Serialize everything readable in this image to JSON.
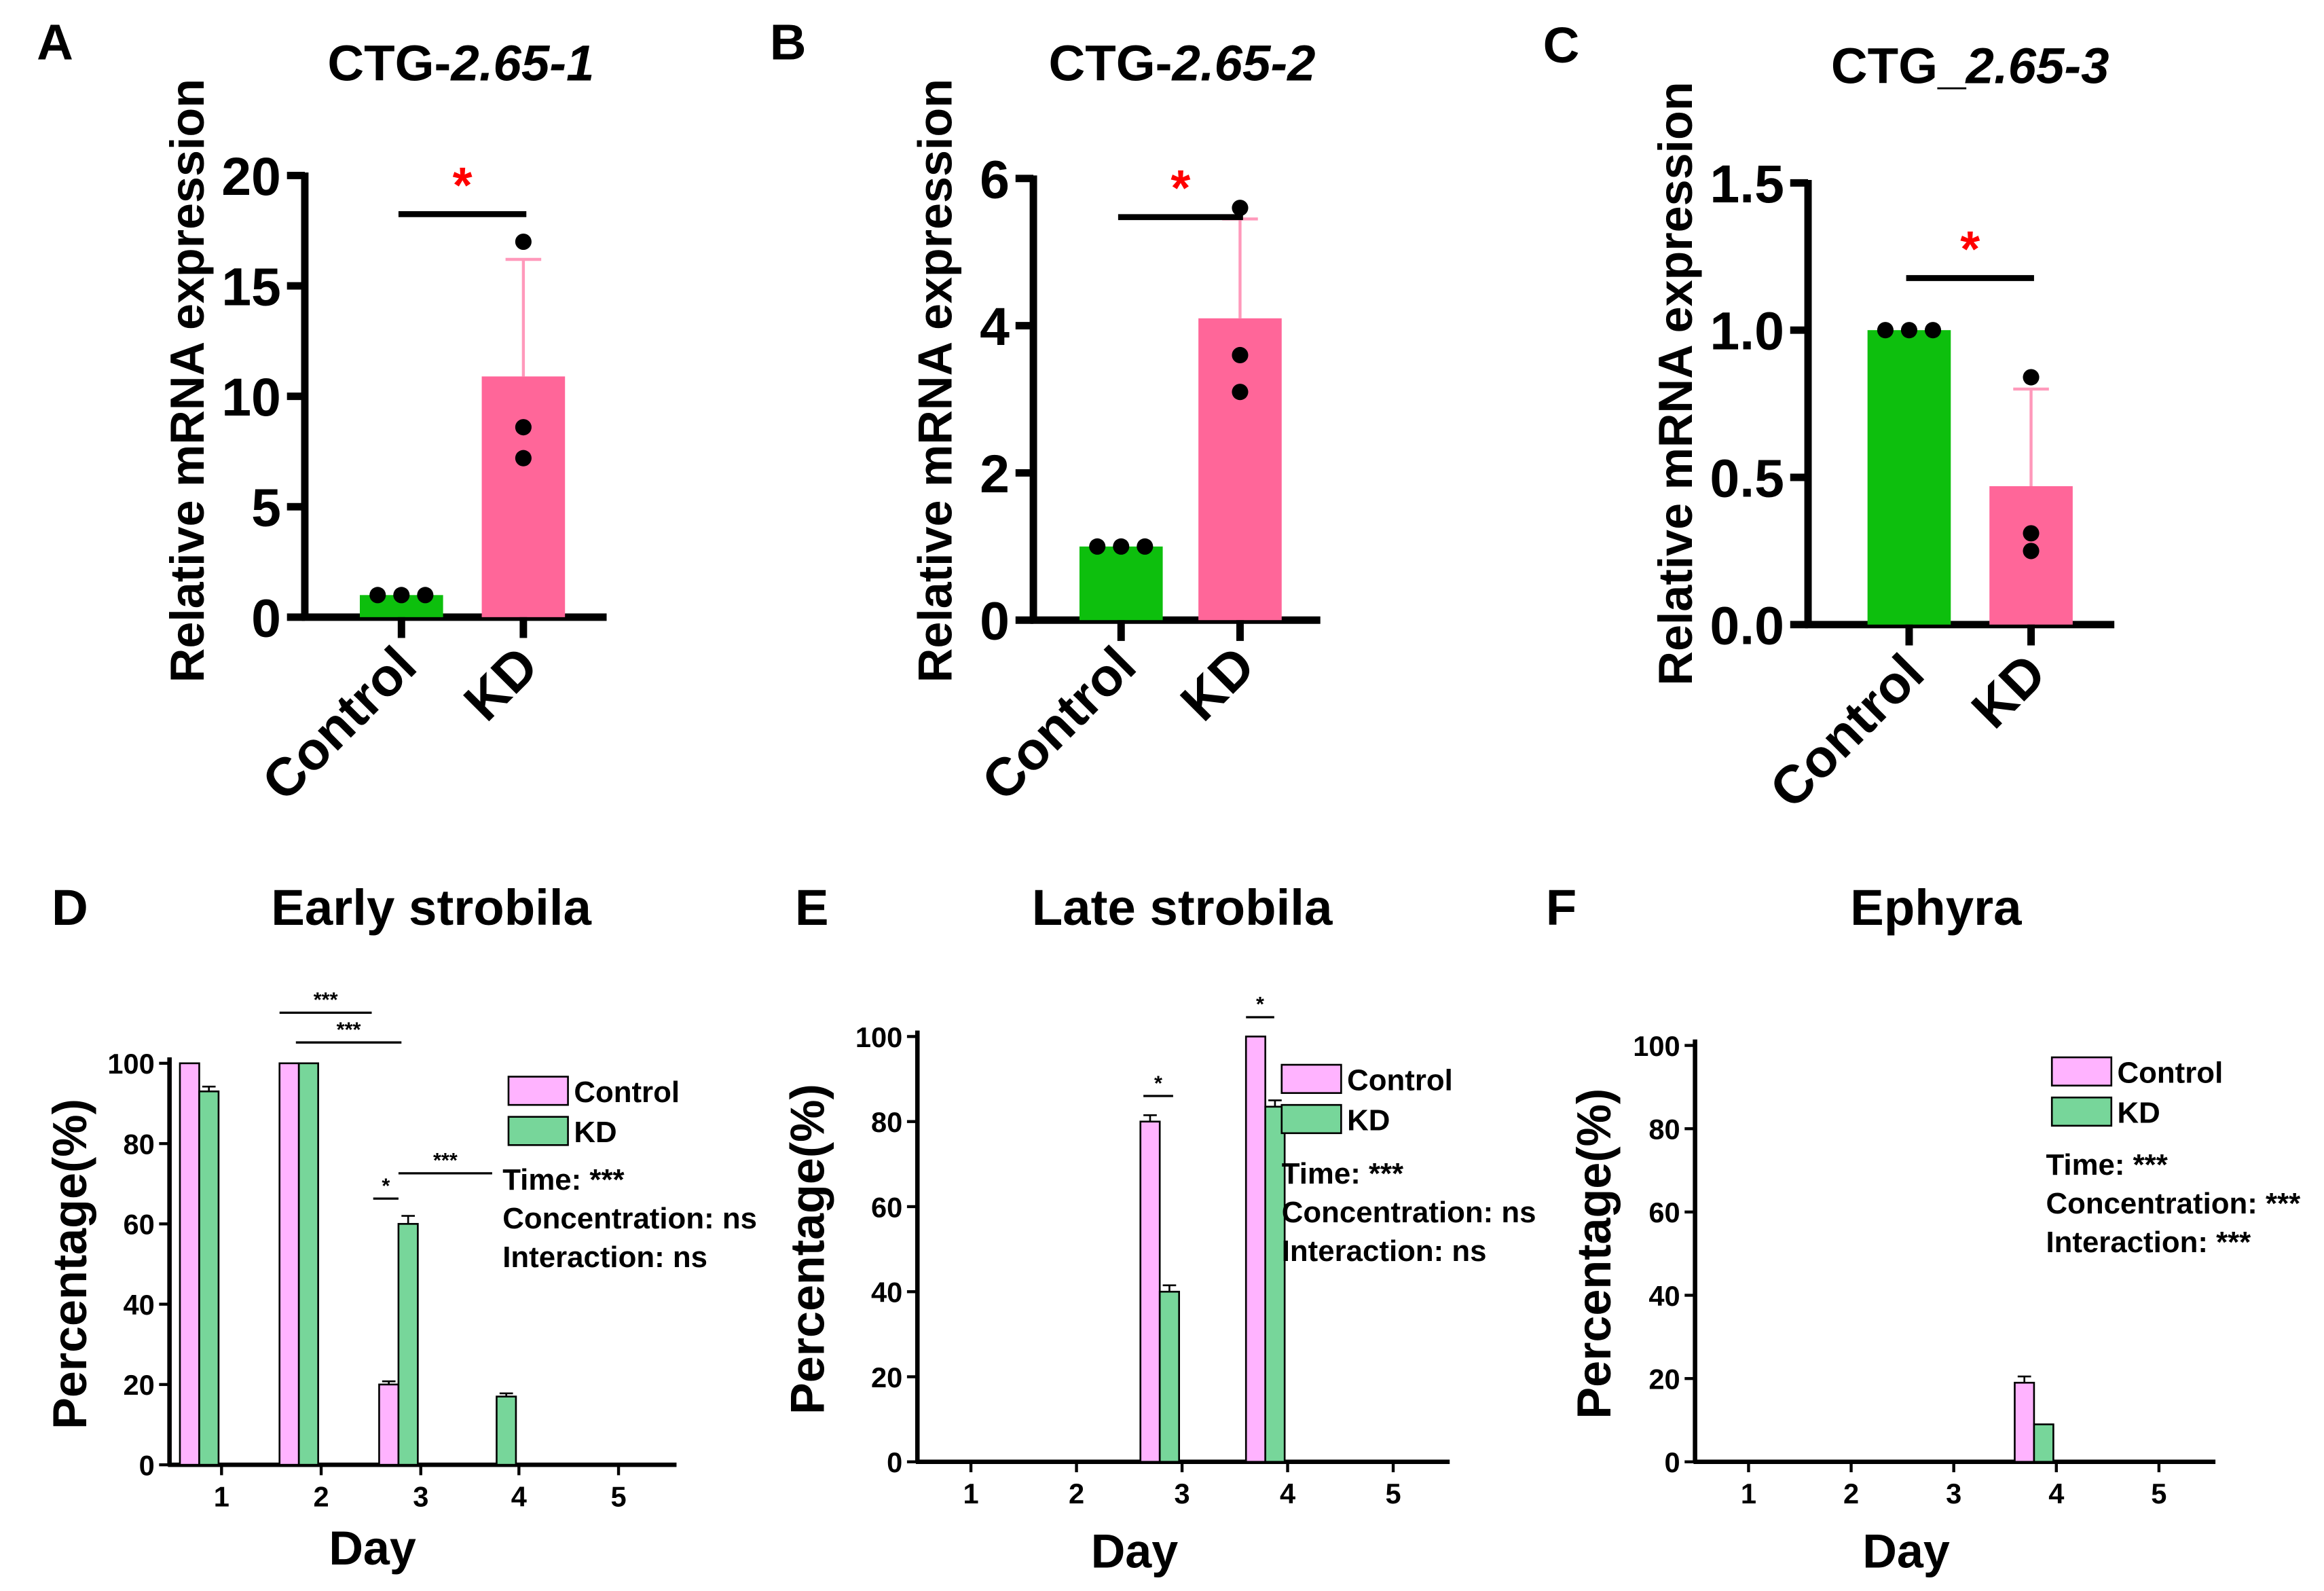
{
  "colors": {
    "control_green": "#0dbf0d",
    "kd_pink": "#ff6699",
    "err_pink": "#ff99bb",
    "sig_red": "#ff0000",
    "bottom_control": "#ffb3ff",
    "bottom_kd": "#77d69a",
    "black": "#000000"
  },
  "chart_data": [
    {
      "panel": "A",
      "type": "bar",
      "title_prefix": "CTG-",
      "title_italic": "2.65-1",
      "ylabel": "Relative mRNA expression",
      "categories": [
        "Control",
        "KD"
      ],
      "values": [
        1.0,
        10.9
      ],
      "errors": [
        0,
        5.3
      ],
      "points": [
        [
          1,
          1,
          1
        ],
        [
          17.0,
          8.6,
          7.2
        ]
      ],
      "ylim": [
        0,
        20
      ],
      "yticks": [
        "0",
        "5",
        "10",
        "15",
        "20"
      ],
      "significance": "*"
    },
    {
      "panel": "B",
      "type": "bar",
      "title_prefix": "CTG-",
      "title_italic": "2.65-2",
      "ylabel": "Relative mRNA expression",
      "categories": [
        "Control",
        "KD"
      ],
      "values": [
        1.0,
        4.1
      ],
      "errors": [
        0,
        1.35
      ],
      "points": [
        [
          1,
          1,
          1
        ],
        [
          5.6,
          3.6,
          3.1
        ]
      ],
      "ylim": [
        0,
        6
      ],
      "yticks": [
        "0",
        "2",
        "4",
        "6"
      ],
      "significance": "*"
    },
    {
      "panel": "C",
      "type": "bar",
      "title_prefix": "CTG_",
      "title_italic": "2.65-3",
      "ylabel": "Relative mRNA expression",
      "categories": [
        "Control",
        "KD"
      ],
      "values": [
        1.0,
        0.47
      ],
      "errors": [
        0,
        0.33
      ],
      "points": [
        [
          1,
          1,
          1
        ],
        [
          0.84,
          0.31,
          0.25
        ]
      ],
      "ylim": [
        0,
        1.5
      ],
      "yticks": [
        "0.0",
        "0.5",
        "1.0",
        "1.5"
      ],
      "significance": "*"
    },
    {
      "panel": "D",
      "type": "bar",
      "title": "Early strobila",
      "xlabel": "Day",
      "ylabel": "Percentage(%)",
      "categories": [
        "1",
        "2",
        "3",
        "4",
        "5"
      ],
      "series": [
        {
          "name": "Control",
          "values": [
            100,
            100,
            20,
            0,
            0
          ],
          "errors": [
            0,
            0,
            0.8,
            0,
            0
          ]
        },
        {
          "name": "KD",
          "values": [
            93,
            100,
            60,
            17,
            0
          ],
          "errors": [
            1.2,
            0,
            2,
            0.8,
            0
          ]
        }
      ],
      "ylim": [
        0,
        100
      ],
      "yticks": [
        "0",
        "20",
        "40",
        "60",
        "80",
        "100"
      ],
      "stats": {
        "time": "Time: ***",
        "concentration": "Concentration: ns",
        "interaction": "Interaction: ns"
      },
      "sig_marks": [
        "***",
        "***",
        "*",
        "***"
      ]
    },
    {
      "panel": "E",
      "type": "bar",
      "title": "Late strobila",
      "xlabel": "Day",
      "ylabel": "Percentage(%)",
      "categories": [
        "1",
        "2",
        "3",
        "4",
        "5"
      ],
      "series": [
        {
          "name": "Control",
          "values": [
            0,
            0,
            80,
            100,
            0
          ],
          "errors": [
            0,
            0,
            1.5,
            0,
            0
          ]
        },
        {
          "name": "KD",
          "values": [
            0,
            0,
            40,
            83.5,
            0
          ],
          "errors": [
            0,
            0,
            1.5,
            1.5,
            0
          ]
        }
      ],
      "ylim": [
        0,
        100
      ],
      "yticks": [
        "0",
        "20",
        "40",
        "60",
        "80",
        "100"
      ],
      "stats": {
        "time": "Time: ***",
        "concentration": "Concentration: ns",
        "interaction": "Interaction: ns"
      },
      "sig_marks": [
        "*",
        "*"
      ]
    },
    {
      "panel": "F",
      "type": "bar",
      "title": "Ephyra",
      "xlabel": "Day",
      "ylabel": "Percentage(%)",
      "categories": [
        "1",
        "2",
        "3",
        "4",
        "5"
      ],
      "series": [
        {
          "name": "Control",
          "values": [
            0,
            0,
            0,
            19,
            0
          ],
          "errors": [
            0,
            0,
            0,
            1.5,
            0
          ]
        },
        {
          "name": "KD",
          "values": [
            0,
            0,
            0,
            9,
            0
          ],
          "errors": [
            0,
            0,
            0,
            0,
            0
          ]
        }
      ],
      "ylim": [
        0,
        100
      ],
      "yticks": [
        "0",
        "20",
        "40",
        "60",
        "80",
        "100"
      ],
      "stats": {
        "time": "Time: ***",
        "concentration": "Concentration: ***",
        "interaction": "Interaction: ***"
      },
      "sig_marks": []
    }
  ]
}
